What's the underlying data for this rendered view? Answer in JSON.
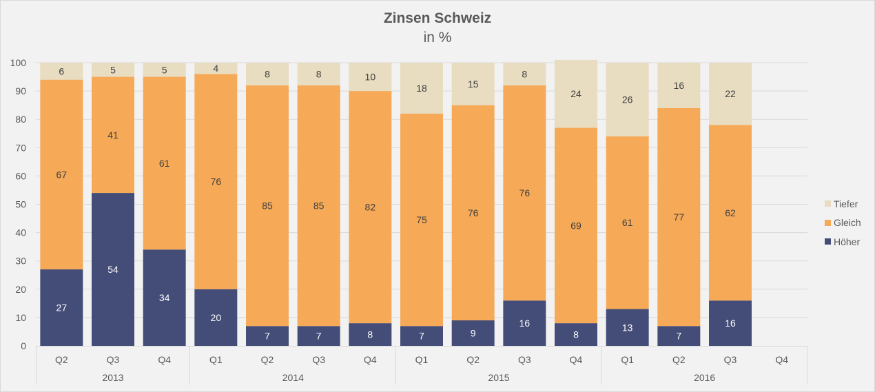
{
  "chart_data": {
    "type": "bar",
    "stacked": true,
    "title": "Zinsen Schweiz",
    "subtitle": "in %",
    "xlabel": "",
    "ylabel": "",
    "ylim": [
      0,
      100
    ],
    "yticks": [
      "0",
      "10",
      "20",
      "30",
      "40",
      "50",
      "60",
      "70",
      "80",
      "90",
      "100"
    ],
    "grid": true,
    "legend_position": "right",
    "categories": [
      "Q2",
      "Q3",
      "Q4",
      "Q1",
      "Q2",
      "Q3",
      "Q4",
      "Q1",
      "Q2",
      "Q3",
      "Q4",
      "Q1",
      "Q2",
      "Q3",
      "Q4"
    ],
    "groups": [
      {
        "label": "2013",
        "count": 3
      },
      {
        "label": "2014",
        "count": 4
      },
      {
        "label": "2015",
        "count": 4
      },
      {
        "label": "2016",
        "count": 4
      }
    ],
    "series": [
      {
        "name": "Höher",
        "color": "#444d78",
        "label_color": "#ffffff",
        "values": [
          27,
          54,
          34,
          20,
          7,
          7,
          8,
          7,
          9,
          16,
          8,
          13,
          7,
          16,
          null
        ]
      },
      {
        "name": "Gleich",
        "color": "#f6a957",
        "label_color": "#404040",
        "values": [
          67,
          41,
          61,
          76,
          85,
          85,
          82,
          75,
          76,
          76,
          69,
          61,
          77,
          62,
          null
        ]
      },
      {
        "name": "Tiefer",
        "color": "#e8dcc1",
        "label_color": "#404040",
        "values": [
          6,
          5,
          5,
          4,
          8,
          8,
          10,
          18,
          15,
          8,
          24,
          26,
          16,
          22,
          null
        ]
      }
    ]
  },
  "legend": [
    {
      "name": "Tiefer",
      "color": "#e8dcc1"
    },
    {
      "name": "Gleich",
      "color": "#f6a957"
    },
    {
      "name": "Höher",
      "color": "#444d78"
    }
  ]
}
